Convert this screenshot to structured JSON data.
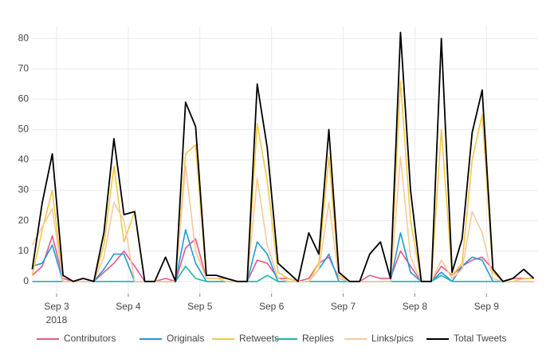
{
  "chart_data": {
    "type": "line",
    "x": [
      -0.34,
      -0.2,
      -0.06,
      0.09,
      0.23,
      0.37,
      0.52,
      0.66,
      0.8,
      0.94,
      1.09,
      1.23,
      1.37,
      1.52,
      1.66,
      1.8,
      1.94,
      2.09,
      2.23,
      2.37,
      2.52,
      2.66,
      2.8,
      2.94,
      3.09,
      3.23,
      3.37,
      3.52,
      3.66,
      3.8,
      3.94,
      4.09,
      4.23,
      4.37,
      4.52,
      4.66,
      4.8,
      4.94,
      5.09,
      5.23,
      5.37,
      5.52,
      5.66,
      5.8,
      5.94,
      6.09,
      6.23,
      6.37,
      6.52,
      6.66
    ],
    "series": [
      {
        "name": "Contributors",
        "color": "#e8588a",
        "values": [
          2,
          5,
          15,
          1,
          0,
          1,
          0,
          3,
          6,
          10,
          5,
          0,
          0,
          1,
          0,
          11,
          14,
          1,
          1,
          1,
          0,
          0,
          7,
          6,
          1,
          1,
          0,
          1,
          6,
          8,
          1,
          0,
          0,
          2,
          1,
          1,
          10,
          5,
          0,
          0,
          5,
          2,
          5,
          7,
          8,
          4,
          0,
          1,
          1,
          1
        ]
      },
      {
        "name": "Originals",
        "color": "#1e9ad6",
        "values": [
          5,
          6,
          12,
          0,
          0,
          0,
          0,
          4,
          9,
          9,
          0,
          0,
          0,
          0,
          0,
          17,
          6,
          0,
          0,
          0,
          0,
          0,
          13,
          9,
          0,
          0,
          0,
          0,
          4,
          9,
          0,
          0,
          0,
          0,
          0,
          0,
          16,
          3,
          0,
          0,
          3,
          0,
          5,
          8,
          7,
          0,
          0,
          0,
          0,
          0
        ]
      },
      {
        "name": "Retweets",
        "color": "#f5c842",
        "values": [
          2,
          17,
          30,
          0,
          0,
          1,
          0,
          12,
          38,
          13,
          23,
          0,
          0,
          0,
          0,
          42,
          45,
          1,
          1,
          1,
          0,
          0,
          52,
          33,
          3,
          1,
          0,
          0,
          6,
          41,
          2,
          0,
          0,
          0,
          0,
          0,
          66,
          20,
          0,
          0,
          50,
          2,
          6,
          40,
          55,
          3,
          0,
          0,
          1,
          1
        ]
      },
      {
        "name": "Replies",
        "color": "#1ab8b0",
        "values": [
          0,
          0,
          0,
          0,
          0,
          0,
          0,
          0,
          0,
          0,
          0,
          0,
          0,
          0,
          0,
          5,
          1,
          0,
          0,
          0,
          0,
          0,
          0,
          2,
          0,
          0,
          0,
          0,
          0,
          0,
          0,
          0,
          0,
          0,
          0,
          0,
          0,
          0,
          0,
          0,
          2,
          0,
          0,
          0,
          0,
          0,
          0,
          0,
          0,
          0
        ]
      },
      {
        "name": "Links/pics",
        "color": "#f7c99d",
        "values": [
          12,
          18,
          24,
          0,
          0,
          0,
          0,
          8,
          26,
          20,
          0,
          0,
          0,
          0,
          0,
          38,
          10,
          1,
          1,
          0,
          0,
          0,
          34,
          12,
          1,
          0,
          0,
          0,
          4,
          26,
          1,
          0,
          0,
          0,
          0,
          0,
          41,
          8,
          0,
          0,
          7,
          1,
          4,
          23,
          16,
          1,
          0,
          0,
          0,
          0
        ]
      },
      {
        "name": "Total Tweets",
        "color": "#000000",
        "values": [
          4,
          26,
          42,
          2,
          0,
          1,
          0,
          16,
          47,
          22,
          23,
          0,
          0,
          8,
          0,
          59,
          51,
          2,
          2,
          1,
          0,
          0,
          65,
          44,
          6,
          3,
          0,
          16,
          9,
          50,
          3,
          0,
          0,
          9,
          13,
          1,
          82,
          30,
          0,
          0,
          80,
          3,
          14,
          49,
          63,
          4,
          0,
          1,
          4,
          1
        ]
      }
    ],
    "xlim": [
      -0.345,
      6.72
    ],
    "xticks": [
      {
        "value": 0,
        "label": "Sep 3"
      },
      {
        "value": 1,
        "label": "Sep 4"
      },
      {
        "value": 2,
        "label": "Sep 5"
      },
      {
        "value": 3,
        "label": "Sep 6"
      },
      {
        "value": 4,
        "label": "Sep 7"
      },
      {
        "value": 5,
        "label": "Sep 8"
      },
      {
        "value": 6,
        "label": "Sep 9"
      }
    ],
    "x_sublabel": "2018",
    "ylim": [
      -4,
      84
    ],
    "yticks": [
      0,
      10,
      20,
      30,
      40,
      50,
      60,
      70,
      80
    ],
    "grid": true,
    "legend": "bottom"
  }
}
